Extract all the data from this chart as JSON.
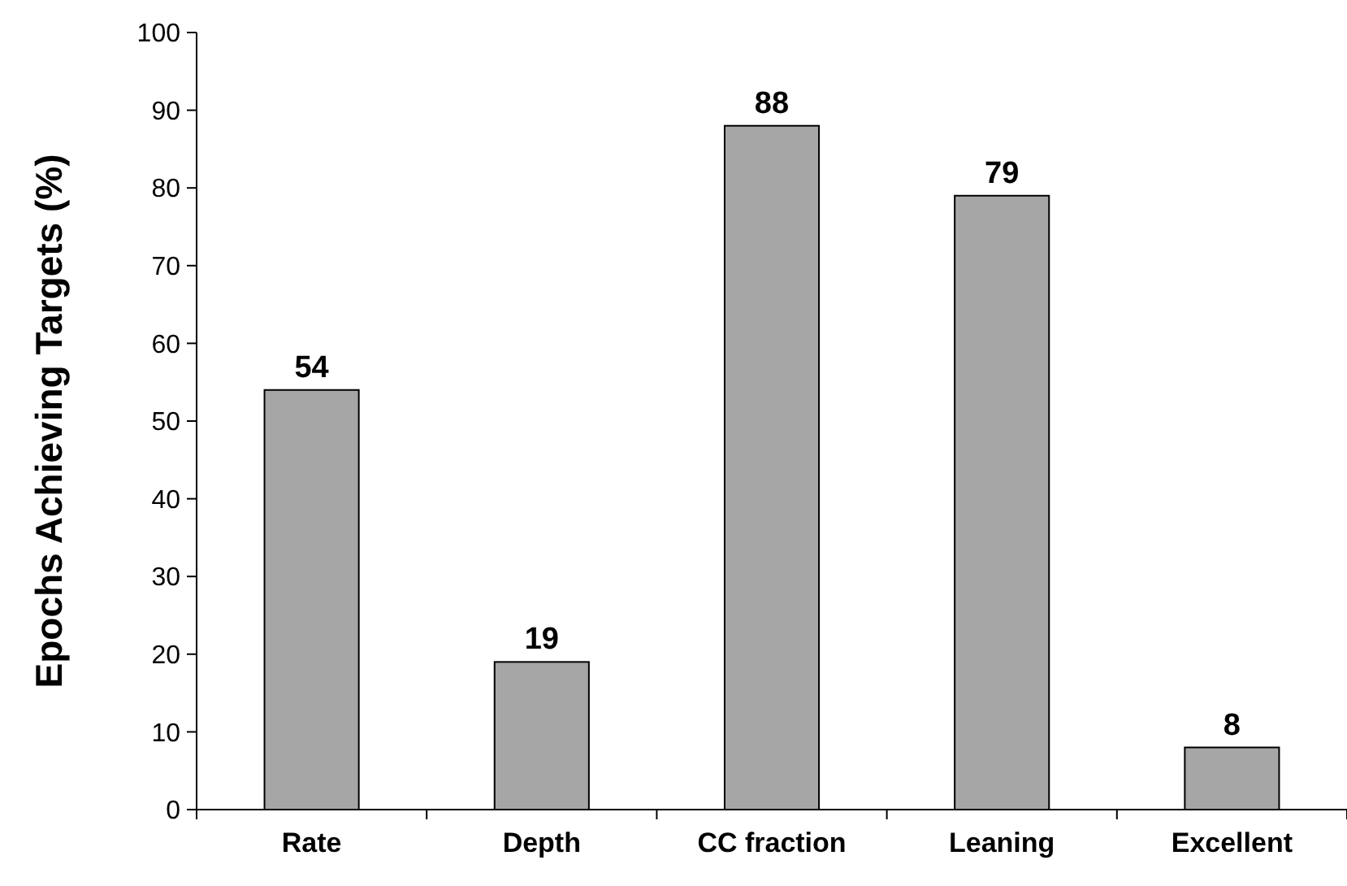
{
  "chart_data": {
    "type": "bar",
    "ylabel": "Epochs Achieving Targets (%)",
    "categories": [
      "Rate",
      "Depth",
      "CC fraction",
      "Leaning",
      "Excellent"
    ],
    "values": [
      54,
      19,
      88,
      79,
      8
    ],
    "color": "#a6a6a6",
    "ylim": [
      0,
      100
    ],
    "yticks": [
      0,
      10,
      20,
      30,
      40,
      50,
      60,
      70,
      80,
      90,
      100
    ],
    "grid": false,
    "data_labels": true
  }
}
